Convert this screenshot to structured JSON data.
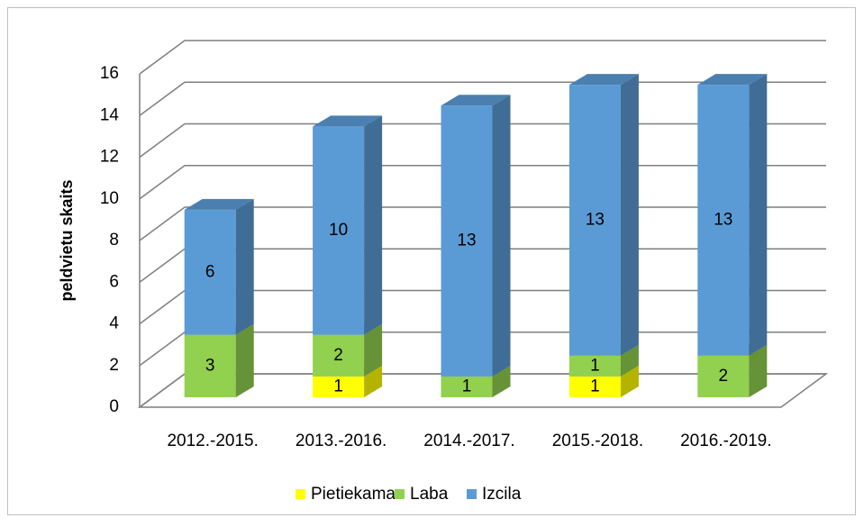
{
  "chart_data": {
    "type": "bar3d_stacked",
    "y_label": "peldvietu skaits",
    "categories": [
      "2012.-2015.",
      "2013.-2016.",
      "2014.-2017.",
      "2015.-2018.",
      "2016.-2019."
    ],
    "series": [
      {
        "name": "Pietiekama",
        "color": "#ffff00",
        "values": [
          null,
          1,
          null,
          1,
          null
        ]
      },
      {
        "name": "Laba",
        "color": "#92d050",
        "values": [
          3,
          2,
          1,
          1,
          2
        ]
      },
      {
        "name": "Izcila",
        "color": "#5b9bd5",
        "values": [
          6,
          10,
          13,
          13,
          13
        ]
      }
    ],
    "ylim": [
      0,
      16
    ],
    "yticks": [
      0,
      2,
      4,
      6,
      8,
      10,
      12,
      14,
      16
    ],
    "grid": true,
    "legend": "bottom"
  }
}
